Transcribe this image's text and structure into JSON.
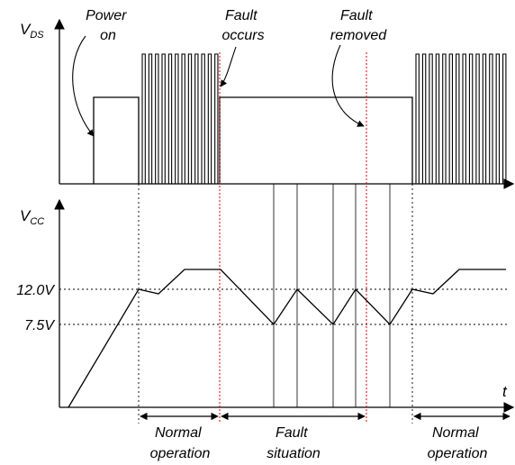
{
  "annotations": {
    "power_on": [
      "Power",
      "on"
    ],
    "fault_occurs": [
      "Fault",
      "occurs"
    ],
    "fault_removed": [
      "Fault",
      "removed"
    ]
  },
  "axes": {
    "vds_main": "V",
    "vds_sub": "DS",
    "vcc_main": "V",
    "vcc_sub": "CC",
    "time": "t"
  },
  "levels": {
    "high": "12.0V",
    "low": "7.5V"
  },
  "phases": {
    "normal_1": [
      "Normal",
      "operation"
    ],
    "fault": [
      "Fault",
      "situation"
    ],
    "normal_2": [
      "Normal",
      "operation"
    ]
  },
  "colors": {
    "fault_marker": "#e00000",
    "line": "#000000",
    "guide": "#000000"
  }
}
